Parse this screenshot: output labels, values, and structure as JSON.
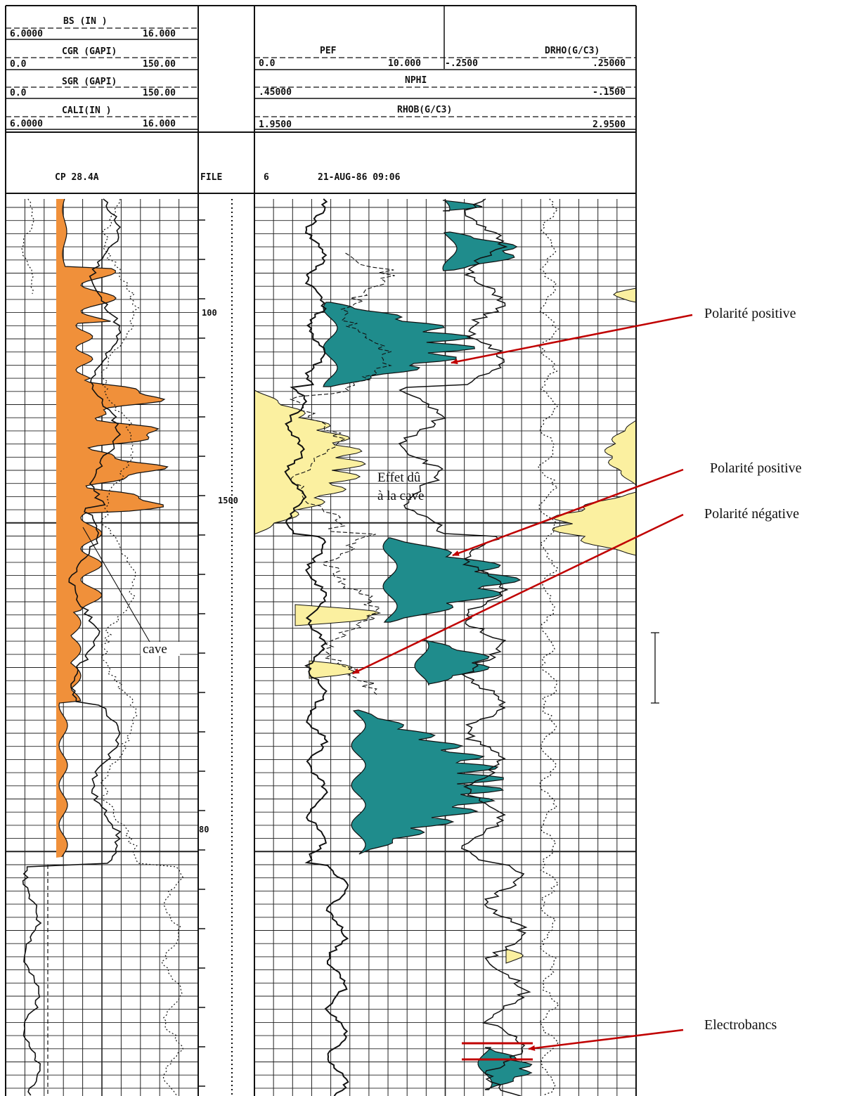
{
  "chart_data": {
    "type": "line",
    "title": "",
    "header": {
      "left_curves": [
        {
          "name": "BS (IN )",
          "min": "6.0000",
          "max": "16.000"
        },
        {
          "name": "CGR (GAPI)",
          "min": "0.0",
          "max": "150.00"
        },
        {
          "name": "SGR (GAPI)",
          "min": "0.0",
          "max": "150.00"
        },
        {
          "name": "CALI(IN )",
          "min": "6.0000",
          "max": "16.000"
        }
      ],
      "pef": {
        "name": "PEF",
        "min": "0.0",
        "max": "10.000"
      },
      "drho": {
        "name": "DRHO(G/C3)",
        "min": "-.2500",
        "max": ".25000"
      },
      "nphi": {
        "name": "NPHI",
        "min": ".45000",
        "max": "-.1500"
      },
      "rhob": {
        "name": "RHOB(G/C3)",
        "min": "1.9500",
        "max": "2.9500"
      },
      "run_info": {
        "tool": "CP 28.4A",
        "file_label": "FILE",
        "file_no": "6",
        "datetime": "21-AUG-86 09:06"
      }
    },
    "depth_labels": [
      {
        "label": "100",
        "pos": 0.225
      },
      {
        "label": "1500",
        "pos": 0.525
      },
      {
        "label": "80",
        "pos": 0.825
      }
    ],
    "fill_colors": {
      "gamma": "#f0903a",
      "positive": "#1f8c8c",
      "negative": "#fbf0a0"
    },
    "annotations": {
      "cave": "cave",
      "effet_line1": "Effet dû",
      "effet_line2": "à la cave"
    },
    "callouts": [
      {
        "text": "Polarité positive"
      },
      {
        "text": "Polarité positive"
      },
      {
        "text": "Polarité négative"
      },
      {
        "text": "Electrobancs"
      }
    ],
    "arrow_color": "#c00000"
  }
}
